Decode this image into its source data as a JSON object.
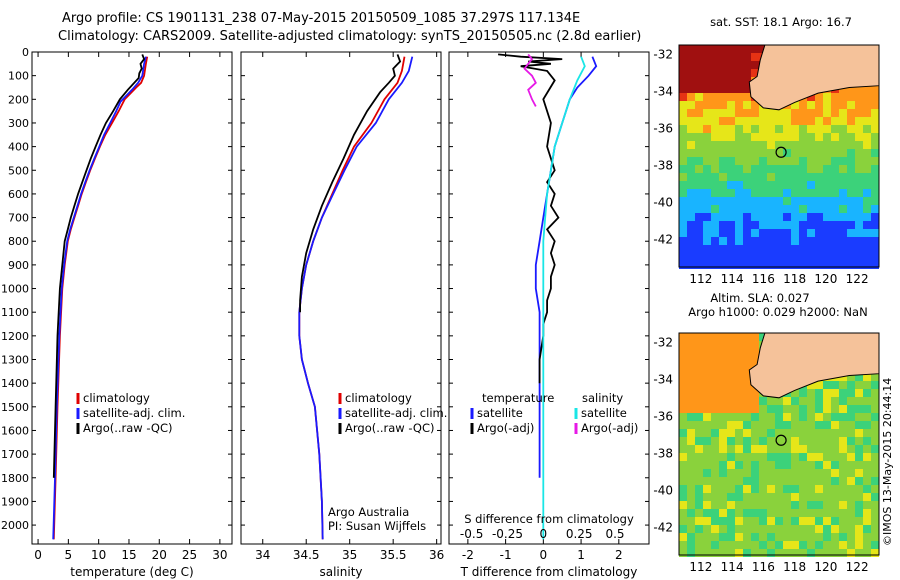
{
  "title": {
    "line1": "Argo profile: CS 1901131_238 07-May-2015 20150509_1085 37.297S 117.134E",
    "line2": "Climatology: CARS2009. Satellite-adjusted climatology: synTS_20150505.nc (2.8d earlier)"
  },
  "colors": {
    "climatology": "#e00000",
    "satellite": "#1a1aff",
    "argo": "#000000",
    "sat_salinity": "#19e6e6",
    "argo_salinity": "#e619e6",
    "land": "#f5c29a"
  },
  "chart_data": [
    {
      "type": "line",
      "xlabel": "temperature (deg C)",
      "ylabel": "",
      "xlim": [
        -1,
        32
      ],
      "ylim": [
        2080,
        0
      ],
      "xticks": [
        0,
        5,
        10,
        15,
        20,
        25,
        30
      ],
      "yticks": [
        0,
        100,
        200,
        300,
        400,
        500,
        600,
        700,
        800,
        900,
        1000,
        1100,
        1200,
        1300,
        1400,
        1500,
        1600,
        1700,
        1800,
        1900,
        2000
      ],
      "legend": [
        "climatology",
        "satellite-adj. clim.",
        "Argo(..raw -QC)"
      ],
      "series": [
        {
          "name": "climatology",
          "color": "#e00000",
          "x": [
            18,
            17.8,
            17.5,
            17,
            16.2,
            14.3,
            13.3,
            12.2,
            11.1,
            10.2,
            9.4,
            8.6,
            7.9,
            7.2,
            6.6,
            6,
            5.4,
            4.9,
            4.4,
            4,
            3.6,
            3.2,
            2.9,
            2.6
          ],
          "y": [
            20,
            50,
            100,
            130,
            150,
            200,
            250,
            300,
            350,
            400,
            450,
            500,
            550,
            600,
            650,
            700,
            750,
            800,
            900,
            1000,
            1200,
            1500,
            1800,
            2060
          ]
        },
        {
          "name": "satellite-adj. clim.",
          "color": "#1a1aff",
          "x": [
            17.8,
            17.5,
            17.2,
            16.5,
            15.5,
            13.6,
            12.9,
            11.9,
            10.9,
            10.1,
            9.3,
            8.5,
            7.8,
            7.1,
            6.5,
            5.9,
            5.3,
            4.8,
            4.3,
            3.9,
            3.5,
            3.1,
            2.8,
            2.5
          ],
          "y": [
            20,
            50,
            100,
            130,
            160,
            210,
            250,
            300,
            350,
            400,
            450,
            500,
            550,
            600,
            650,
            700,
            750,
            800,
            900,
            1000,
            1200,
            1500,
            1800,
            2060
          ]
        },
        {
          "name": "Argo(..raw -QC)",
          "color": "#000000",
          "x": [
            17.2,
            17.5,
            16.9,
            17.1,
            16.7,
            16.6,
            14.8,
            13.5,
            12.4,
            11.2,
            10.3,
            9.5,
            8.7,
            8,
            7.3,
            6.6,
            6,
            5.4,
            4.9,
            4.4,
            4,
            3.6,
            3.2,
            2.9,
            2.6
          ],
          "y": [
            10,
            30,
            50,
            70,
            90,
            110,
            160,
            200,
            250,
            300,
            350,
            400,
            450,
            500,
            550,
            600,
            650,
            700,
            750,
            800,
            900,
            1000,
            1200,
            1500,
            1800
          ]
        }
      ]
    },
    {
      "type": "line",
      "xlabel": "salinity",
      "ylabel": "",
      "xlim": [
        33.75,
        36.05
      ],
      "ylim": [
        2080,
        0
      ],
      "xticks": [
        34,
        34.5,
        35,
        35.5,
        36
      ],
      "legend": [
        "climatology",
        "satellite-adj. clim.",
        "Argo(..raw -QC)"
      ],
      "annotation": [
        "Argo Australia",
        "PI: Susan Wijffels"
      ],
      "series": [
        {
          "name": "climatology",
          "color": "#e00000",
          "x": [
            35.63,
            35.6,
            35.55,
            35.4,
            35.25,
            35.05,
            34.92,
            34.8,
            34.68,
            34.58,
            34.5,
            34.45,
            34.42,
            34.42,
            34.45,
            34.52,
            34.6,
            34.65,
            34.68,
            34.69
          ],
          "y": [
            20,
            80,
            130,
            200,
            300,
            400,
            500,
            600,
            700,
            800,
            900,
            1000,
            1100,
            1200,
            1300,
            1400,
            1500,
            1700,
            1900,
            2060
          ]
        },
        {
          "name": "satellite-adj. clim.",
          "color": "#1a1aff",
          "x": [
            35.72,
            35.68,
            35.6,
            35.45,
            35.3,
            35.08,
            34.94,
            34.81,
            34.68,
            34.58,
            34.5,
            34.45,
            34.42,
            34.42,
            34.45,
            34.52,
            34.6,
            34.65,
            34.68,
            34.69
          ],
          "y": [
            20,
            80,
            130,
            200,
            300,
            400,
            500,
            600,
            700,
            800,
            900,
            1000,
            1100,
            1200,
            1300,
            1400,
            1500,
            1700,
            1900,
            2060
          ]
        },
        {
          "name": "Argo(..raw -QC)",
          "color": "#000000",
          "x": [
            35.55,
            35.58,
            35.5,
            35.52,
            35.45,
            35.35,
            35.2,
            35.05,
            34.93,
            34.8,
            34.68,
            34.58,
            34.5,
            34.45,
            34.43,
            34.43
          ],
          "y": [
            10,
            40,
            70,
            100,
            130,
            170,
            250,
            350,
            450,
            550,
            650,
            750,
            850,
            950,
            1050,
            1100
          ]
        }
      ]
    },
    {
      "type": "line",
      "xlabel": "T difference from climatology",
      "xlabel_top": "S difference from climatology",
      "xlim": [
        -2.5,
        2.8
      ],
      "ylim": [
        2080,
        0
      ],
      "xticks": [
        -2,
        -1,
        0,
        1,
        2
      ],
      "xticks_top": [
        "-0.5",
        "-0.25",
        "0",
        "0.25",
        "0.5"
      ],
      "legend_temperature": [
        "temperature",
        "satellite",
        "Argo(-adj)"
      ],
      "legend_salinity": [
        "salinity",
        "satellite",
        "Argo(-adj)"
      ],
      "series": [
        {
          "name": "satellite",
          "color": "#1a1aff",
          "x": [
            1.3,
            1.4,
            1.2,
            0.9,
            0.7,
            0.5,
            0.3,
            0.2,
            0.1,
            0,
            -0.1,
            -0.2,
            -0.2,
            -0.1,
            -0.1,
            -0.1,
            -0.1,
            -0.1
          ],
          "y": [
            20,
            60,
            100,
            150,
            200,
            300,
            400,
            500,
            600,
            700,
            800,
            900,
            1000,
            1100,
            1200,
            1400,
            1600,
            1800
          ]
        },
        {
          "name": "Argo(-adj)",
          "color": "#000000",
          "x": [
            -1.2,
            -0.6,
            0.5,
            -0.4,
            0.2,
            -0.6,
            0.1,
            0.3,
            0,
            0.2,
            0.1,
            0.3,
            0.1,
            0.3,
            0.2,
            0.4,
            0.1,
            0.3,
            0.2,
            0.3,
            0.2,
            0.2,
            0.1,
            0.1,
            0,
            0,
            -0.1,
            -0.1
          ],
          "y": [
            10,
            20,
            30,
            40,
            50,
            60,
            80,
            120,
            200,
            300,
            400,
            500,
            550,
            600,
            650,
            700,
            750,
            800,
            850,
            900,
            950,
            1000,
            1050,
            1100,
            1150,
            1200,
            1300,
            1400
          ]
        },
        {
          "name": "satellite (salinity)",
          "color": "#19e6e6",
          "x": [
            1,
            1.1,
            0.9,
            0.7,
            0.5,
            0.3,
            0.2,
            0.1,
            0.05,
            0,
            0,
            0,
            0,
            0
          ],
          "y": [
            20,
            60,
            120,
            200,
            300,
            400,
            500,
            600,
            700,
            800,
            1000,
            1400,
            1800,
            2060
          ]
        },
        {
          "name": "Argo(-adj) (salinity)",
          "color": "#e619e6",
          "x": [
            -0.4,
            -0.3,
            -0.4,
            -0.5,
            -0.3,
            -0.2,
            -0.4,
            -0.3,
            -0.2
          ],
          "y": [
            10,
            30,
            50,
            70,
            100,
            130,
            160,
            200,
            230
          ]
        }
      ]
    },
    {
      "type": "heatmap",
      "title": "sat. SST: 18.1 Argo: 16.7",
      "xticks": [
        112,
        114,
        116,
        118,
        120,
        122
      ],
      "yticks": [
        -32,
        -34,
        -36,
        -38,
        -40,
        -42
      ],
      "xlim": [
        110.6,
        123.4
      ],
      "ylim": [
        -43.5,
        -31.5
      ]
    },
    {
      "type": "heatmap",
      "title": [
        "Altim. SLA: 0.027",
        "Argo h1000: 0.029 h2000: NaN"
      ],
      "xticks": [
        112,
        114,
        116,
        118,
        120,
        122
      ],
      "yticks": [
        -32,
        -34,
        -36,
        -38,
        -40,
        -42
      ],
      "xlim": [
        110.6,
        123.4
      ],
      "ylim": [
        -43.5,
        -31.5
      ]
    }
  ],
  "side_label": "©IMOS 13-May-2015 20:44:14"
}
